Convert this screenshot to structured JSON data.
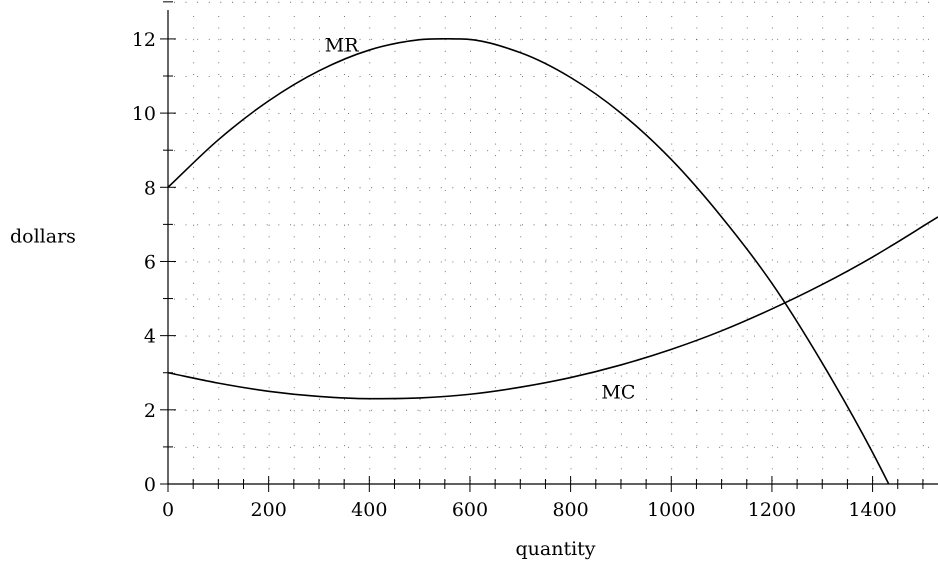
{
  "chart_data": {
    "type": "line",
    "title": "",
    "xlabel": "quantity",
    "ylabel": "dollars",
    "xlim": [
      0,
      1530
    ],
    "ylim": [
      0,
      13.4
    ],
    "x_ticks": [
      0,
      200,
      400,
      600,
      800,
      1000,
      1200,
      1400
    ],
    "y_ticks": [
      0,
      2,
      4,
      6,
      8,
      10,
      12
    ],
    "x_minor_step": 50,
    "y_minor_step": 1,
    "grid": true,
    "grid_style": "dotted",
    "series": [
      {
        "name": "MR",
        "x": [
          0,
          100,
          200,
          300,
          400,
          500,
          580,
          700,
          800,
          900,
          1000,
          1100,
          1200,
          1300,
          1400,
          1530
        ],
        "y": [
          8.0,
          9.28,
          10.33,
          11.14,
          11.7,
          11.98,
          12.0,
          11.63,
          10.96,
          10.0,
          8.75,
          7.2,
          5.41,
          3.26,
          0.85,
          -2.7
        ]
      },
      {
        "name": "MC",
        "x": [
          0,
          100,
          200,
          300,
          400,
          500,
          600,
          700,
          800,
          900,
          1000,
          1100,
          1200,
          1300,
          1400,
          1530
        ],
        "y": [
          3.0,
          2.72,
          2.5,
          2.36,
          2.3,
          2.32,
          2.42,
          2.61,
          2.87,
          3.21,
          3.63,
          4.13,
          4.72,
          5.38,
          6.12,
          7.2
        ]
      }
    ],
    "annotations": [
      {
        "text": "MR",
        "x": 345,
        "y": 11.85
      },
      {
        "text": "MC",
        "x": 895,
        "y": 2.5
      }
    ]
  }
}
